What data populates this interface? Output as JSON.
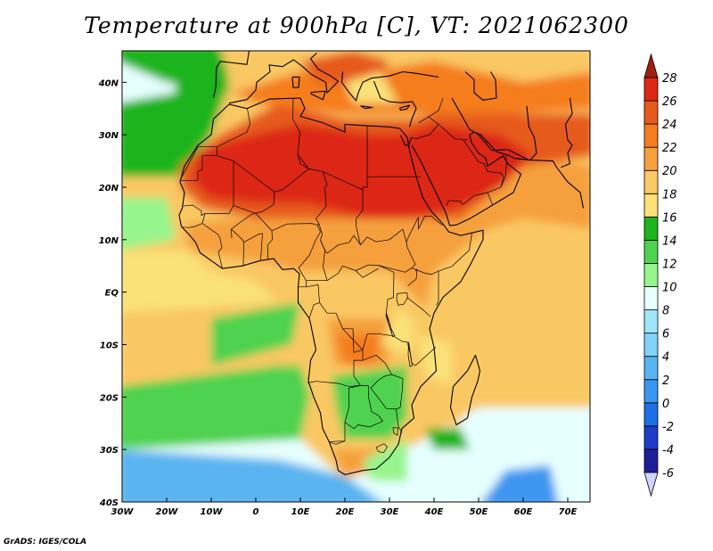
{
  "title": "Temperature at 900hPa [C], VT: 2021062300",
  "credit": "GrADS: IGES/COLA",
  "chart_data": {
    "type": "heatmap",
    "title": "Temperature at 900hPa [C], VT: 2021062300",
    "variable": "Temperature at 900hPa",
    "units": "C",
    "valid_time": "2021062300",
    "x_ticks": [
      "30W",
      "20W",
      "10W",
      "0",
      "10E",
      "20E",
      "30E",
      "40E",
      "50E",
      "60E",
      "70E"
    ],
    "x_values": [
      -30,
      -20,
      -10,
      0,
      10,
      20,
      30,
      40,
      50,
      60,
      70
    ],
    "y_ticks": [
      "40S",
      "30S",
      "20S",
      "10S",
      "EQ",
      "10N",
      "20N",
      "30N",
      "40N"
    ],
    "y_values": [
      -40,
      -30,
      -20,
      -10,
      0,
      10,
      20,
      30,
      40
    ],
    "xlim": [
      -30,
      75
    ],
    "ylim": [
      -40,
      46
    ],
    "colorbar": {
      "levels": [
        -6,
        -4,
        -2,
        0,
        2,
        4,
        6,
        8,
        10,
        12,
        14,
        16,
        18,
        20,
        22,
        24,
        26,
        28
      ],
      "labels": [
        "-6",
        "-4",
        "-2",
        "0",
        "2",
        "4",
        "6",
        "8",
        "10",
        "12",
        "14",
        "16",
        "18",
        "20",
        "22",
        "24",
        "26",
        "28"
      ],
      "colors": [
        "#d2d2ff",
        "#1e1e96",
        "#1e3cc8",
        "#1e6ee6",
        "#3c96f0",
        "#5ab4f0",
        "#82d2fa",
        "#a0e6fa",
        "#e6ffff",
        "#96f58c",
        "#50d250",
        "#1eb41e",
        "#fae178",
        "#fac864",
        "#f5a03c",
        "#f57d1e",
        "#e65a1e",
        "#dc2814",
        "#a01e10"
      ]
    },
    "features": [
      "continent outlines",
      "country borders"
    ],
    "grid": false
  }
}
